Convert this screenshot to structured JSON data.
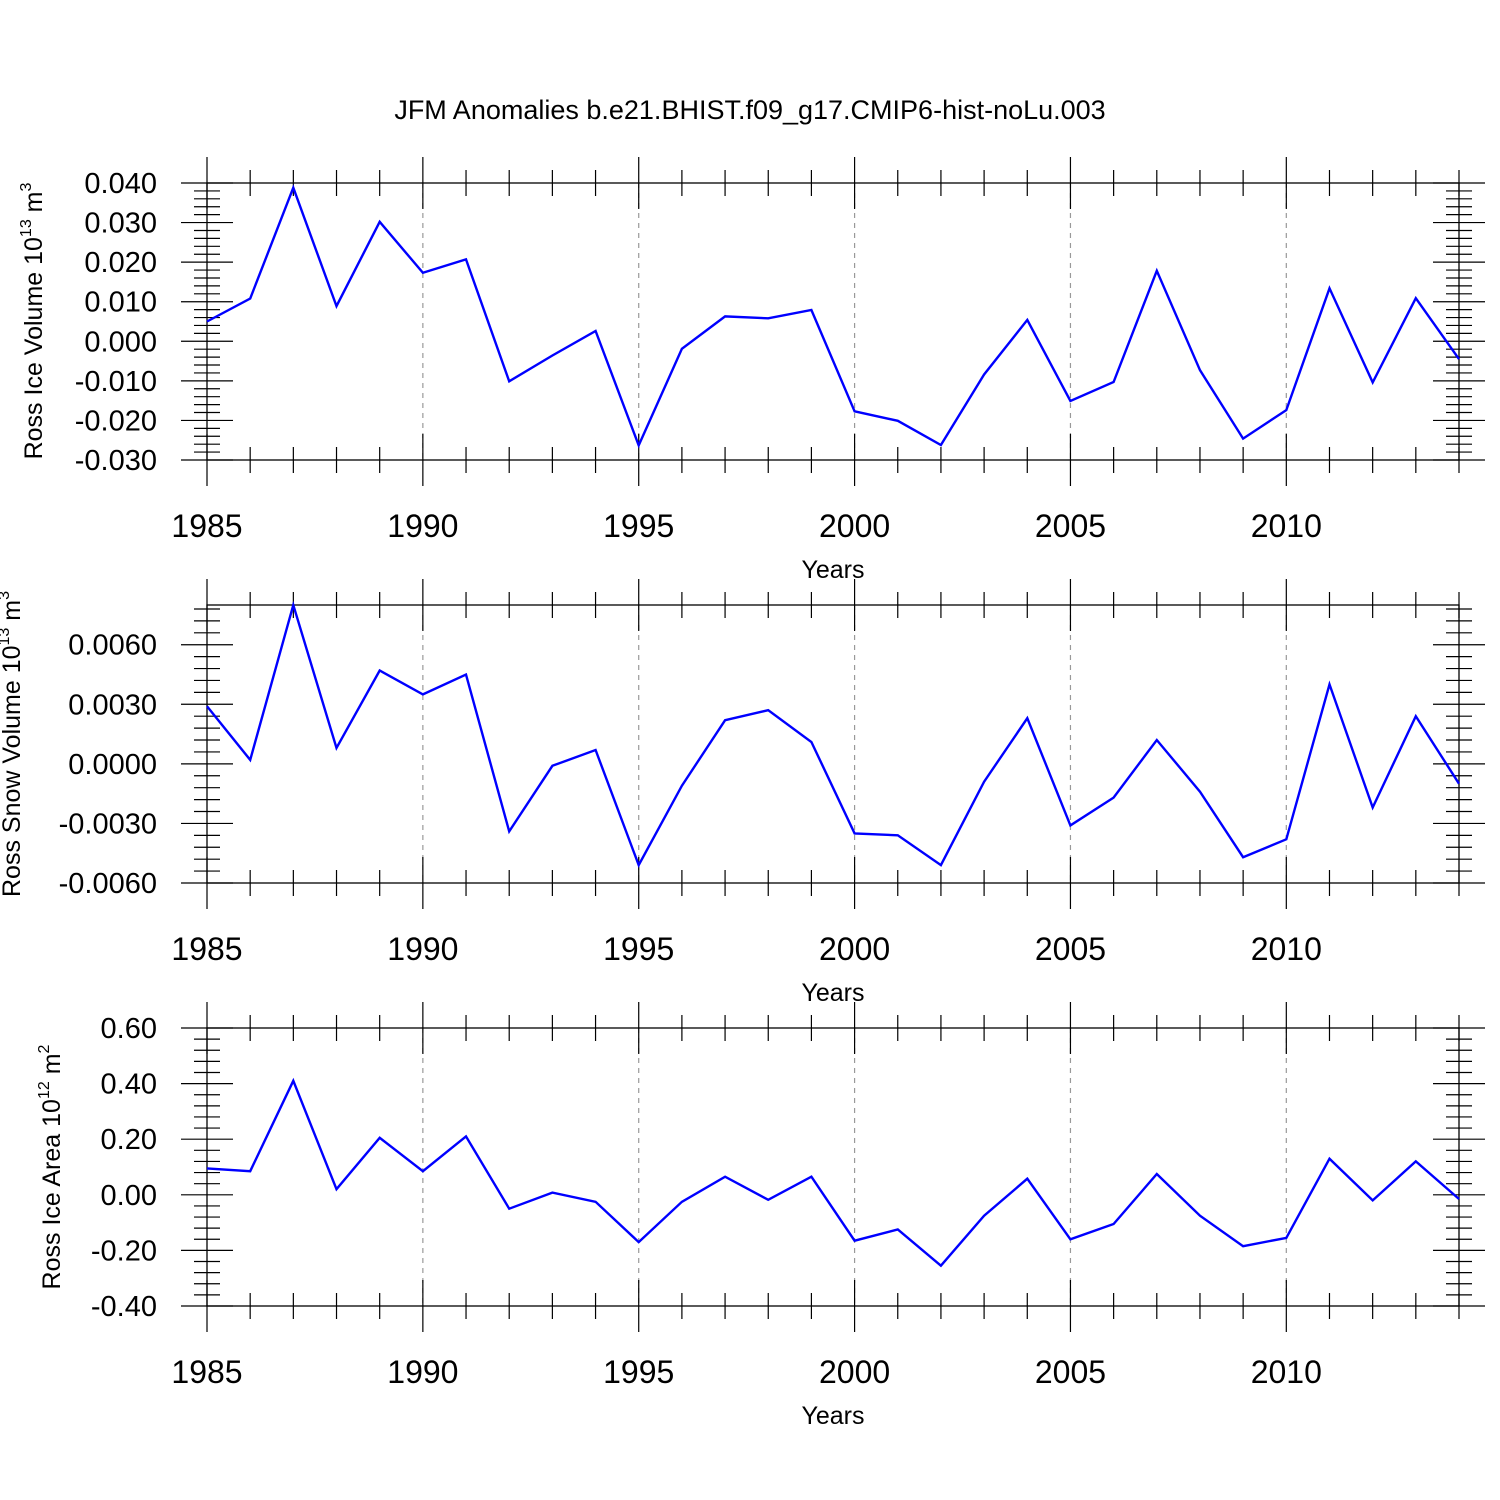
{
  "title": "JFM Anomalies b.e21.BHIST.f09_g17.CMIP6-hist-noLu.003",
  "colors": {
    "series": "#0000ff",
    "frame": "#000000",
    "grid": "#999999"
  },
  "chart_data": [
    {
      "type": "line",
      "ylabel": {
        "main": "Ross Ice Volume 10",
        "sup": "13",
        "unit": " m",
        "unit_sup": "3"
      },
      "xlabel": "Years",
      "xlim": [
        1985,
        2014
      ],
      "ylim": [
        -0.03,
        0.04
      ],
      "yticks": [
        -0.03,
        -0.02,
        -0.01,
        0.0,
        0.01,
        0.02,
        0.03,
        0.04
      ],
      "ytick_labels": [
        "-0.030",
        "-0.020",
        "-0.010",
        "0.000",
        "0.010",
        "0.020",
        "0.030",
        "0.040"
      ],
      "xticks": [
        1985,
        1990,
        1995,
        2000,
        2005,
        2010
      ],
      "xtick_labels": [
        "1985",
        "1990",
        "1995",
        "2000",
        "2005",
        "2010"
      ],
      "grid": "vertical-dashed",
      "x": [
        1985,
        1986,
        1987,
        1988,
        1989,
        1990,
        1991,
        1992,
        1993,
        1994,
        1995,
        1996,
        1997,
        1998,
        1999,
        2000,
        2001,
        2002,
        2003,
        2004,
        2005,
        2006,
        2007,
        2008,
        2009,
        2010,
        2011,
        2012,
        2013,
        2014
      ],
      "y": [
        0.005,
        0.0108,
        0.0388,
        0.0089,
        0.0302,
        0.0173,
        0.0207,
        -0.0101,
        -0.0036,
        0.0026,
        -0.0263,
        -0.0019,
        0.0063,
        0.0058,
        0.0079,
        -0.0177,
        -0.0201,
        -0.0262,
        -0.0084,
        0.0054,
        -0.0151,
        -0.0103,
        0.0178,
        -0.0073,
        -0.0246,
        -0.0174,
        0.0134,
        -0.0104,
        0.0109,
        -0.0045
      ]
    },
    {
      "type": "line",
      "ylabel": {
        "main": "Ross Snow Volume 10",
        "sup": "13",
        "unit": " m",
        "unit_sup": "3"
      },
      "xlabel": "Years",
      "xlim": [
        1985,
        2014
      ],
      "ylim": [
        -0.006,
        0.008
      ],
      "yticks": [
        -0.006,
        -0.003,
        0.0,
        0.003,
        0.006
      ],
      "ytick_labels": [
        "-0.0060",
        "-0.0030",
        "0.0000",
        "0.0030",
        "0.0060"
      ],
      "xticks": [
        1985,
        1990,
        1995,
        2000,
        2005,
        2010
      ],
      "xtick_labels": [
        "1985",
        "1990",
        "1995",
        "2000",
        "2005",
        "2010"
      ],
      "grid": "vertical-dashed",
      "x": [
        1985,
        1986,
        1987,
        1988,
        1989,
        1990,
        1991,
        1992,
        1993,
        1994,
        1995,
        1996,
        1997,
        1998,
        1999,
        2000,
        2001,
        2002,
        2003,
        2004,
        2005,
        2006,
        2007,
        2008,
        2009,
        2010,
        2011,
        2012,
        2013,
        2014
      ],
      "y": [
        0.0029,
        0.0002,
        0.008,
        0.0008,
        0.0047,
        0.0035,
        0.0045,
        -0.0034,
        -0.0001,
        0.0007,
        -0.0051,
        -0.0011,
        0.0022,
        0.0027,
        0.0011,
        -0.0035,
        -0.0036,
        -0.0051,
        -0.0009,
        0.0023,
        -0.0031,
        -0.0017,
        0.0012,
        -0.0014,
        -0.0047,
        -0.0038,
        0.004,
        -0.0022,
        0.0024,
        -0.001
      ]
    },
    {
      "type": "line",
      "ylabel": {
        "main": "Ross Ice Area 10",
        "sup": "12",
        "unit": " m",
        "unit_sup": "2"
      },
      "xlabel": "Years",
      "xlim": [
        1985,
        2014
      ],
      "ylim": [
        -0.4,
        0.6
      ],
      "yticks": [
        -0.4,
        -0.2,
        0.0,
        0.2,
        0.4,
        0.6
      ],
      "ytick_labels": [
        "-0.40",
        "-0.20",
        "0.00",
        "0.20",
        "0.40",
        "0.60"
      ],
      "xticks": [
        1985,
        1990,
        1995,
        2000,
        2005,
        2010
      ],
      "xtick_labels": [
        "1985",
        "1990",
        "1995",
        "2000",
        "2005",
        "2010"
      ],
      "grid": "vertical-dashed",
      "x": [
        1985,
        1986,
        1987,
        1988,
        1989,
        1990,
        1991,
        1992,
        1993,
        1994,
        1995,
        1996,
        1997,
        1998,
        1999,
        2000,
        2001,
        2002,
        2003,
        2004,
        2005,
        2006,
        2007,
        2008,
        2009,
        2010,
        2011,
        2012,
        2013,
        2014
      ],
      "y": [
        0.095,
        0.085,
        0.41,
        0.02,
        0.205,
        0.085,
        0.21,
        -0.05,
        0.008,
        -0.025,
        -0.17,
        -0.025,
        0.065,
        -0.018,
        0.065,
        -0.165,
        -0.125,
        -0.255,
        -0.075,
        0.058,
        -0.16,
        -0.105,
        0.075,
        -0.075,
        -0.185,
        -0.155,
        0.13,
        -0.02,
        0.12,
        -0.015
      ]
    }
  ]
}
